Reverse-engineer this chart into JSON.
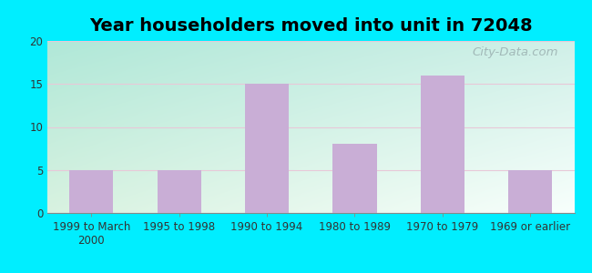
{
  "title": "Year householders moved into unit in 72048",
  "categories": [
    "1999 to March\n2000",
    "1995 to 1998",
    "1990 to 1994",
    "1980 to 1989",
    "1970 to 1979",
    "1969 or earlier"
  ],
  "values": [
    5,
    5,
    15,
    8,
    16,
    5
  ],
  "bar_color": "#c9aed6",
  "ylim": [
    0,
    20
  ],
  "yticks": [
    0,
    5,
    10,
    15,
    20
  ],
  "background_outer": "#00eeff",
  "gradient_top_left": "#b0e8d8",
  "gradient_bottom_right": "#f0fff8",
  "grid_color": "#e8c8d8",
  "title_fontsize": 14,
  "tick_fontsize": 8.5,
  "watermark": "City-Data.com",
  "bar_width": 0.5
}
